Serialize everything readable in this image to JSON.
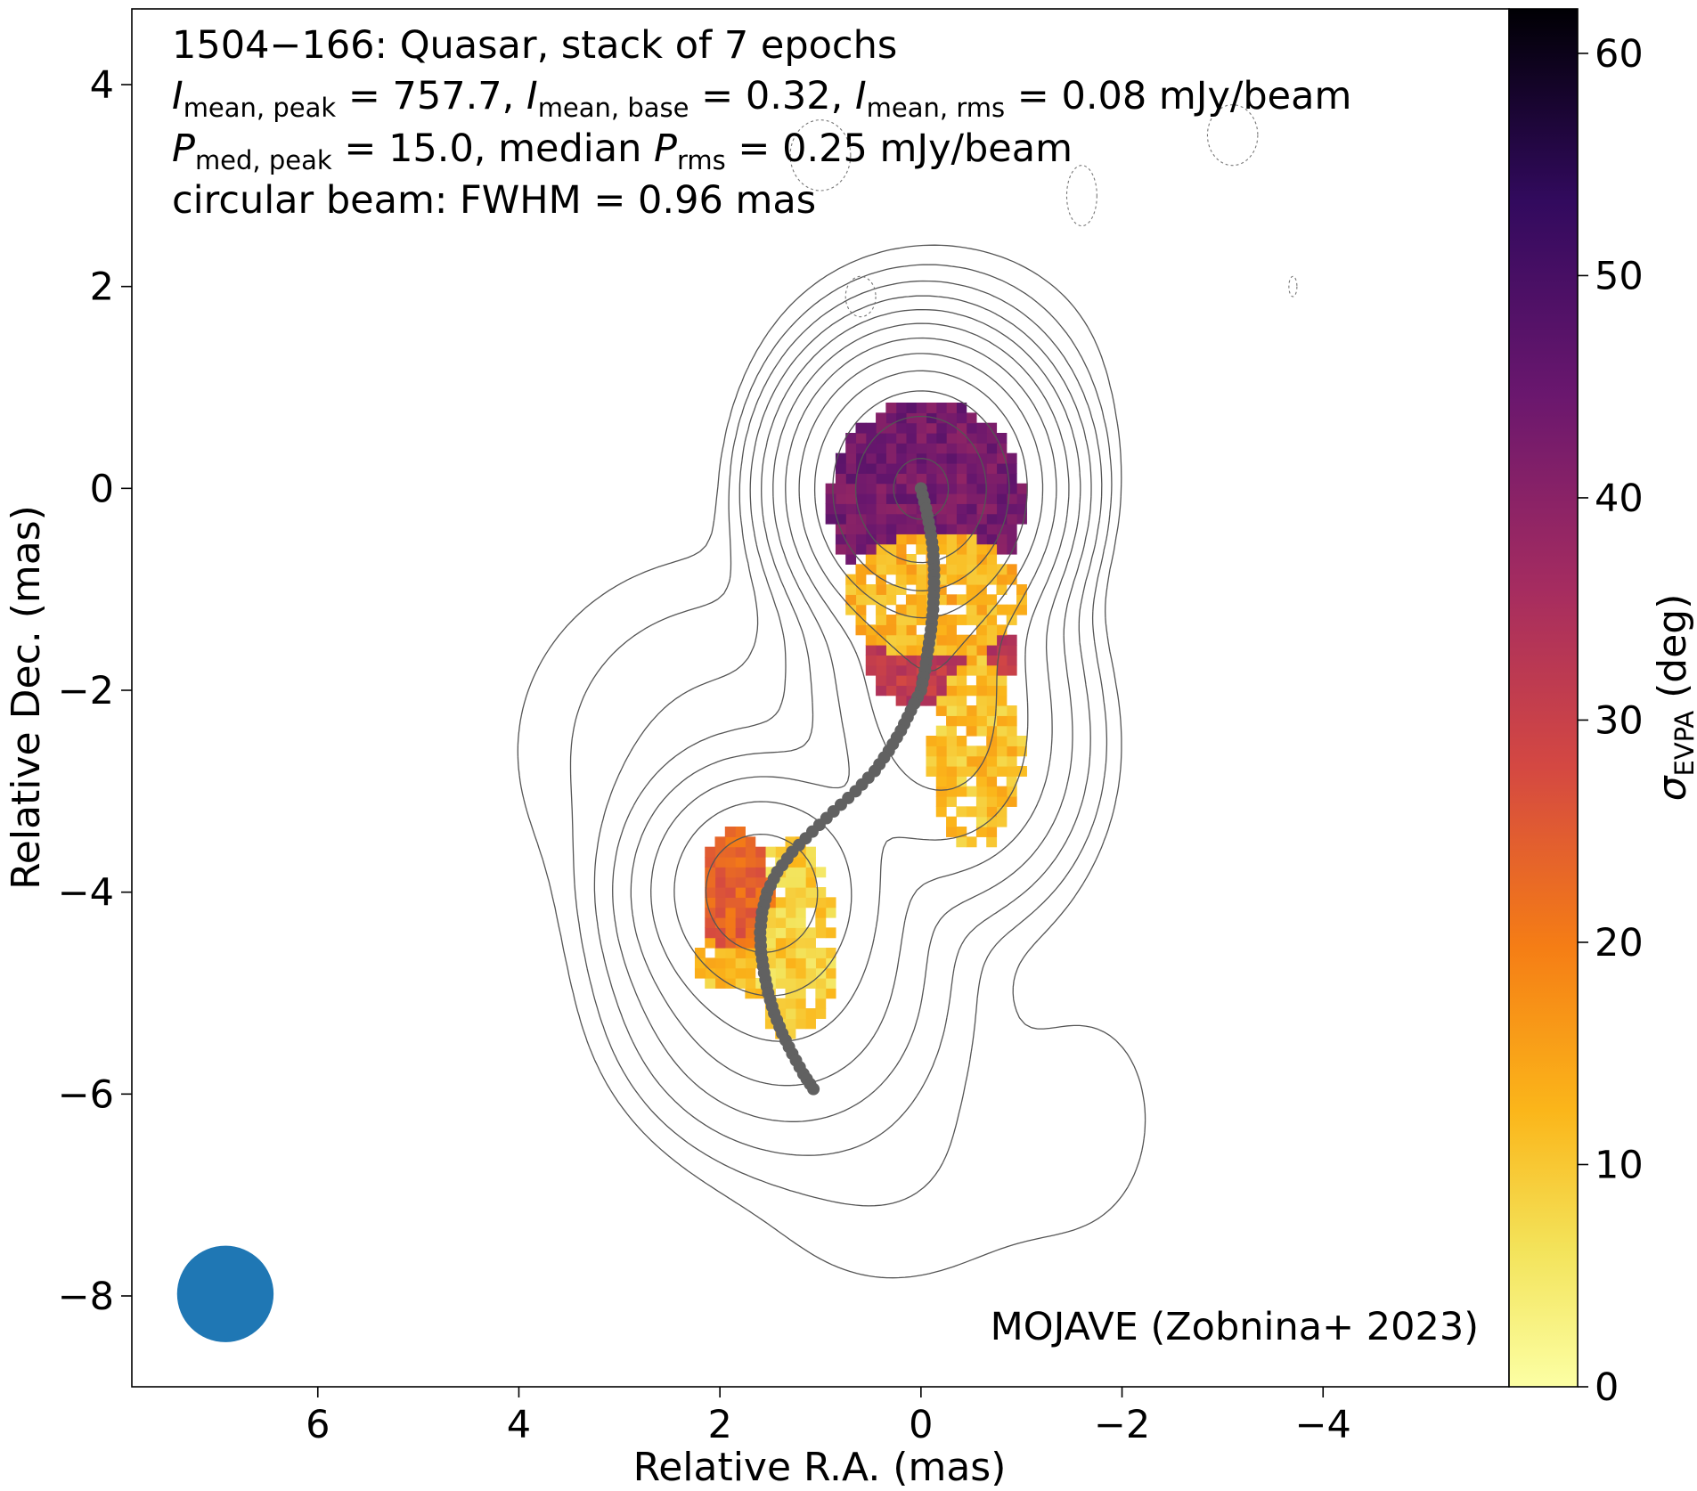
{
  "chart_data": {
    "type": "heatmap",
    "title_lines": [
      "1504−166: Quasar, stack of 7 epochs",
      "circular beam: FWHM = 0.96 mas"
    ],
    "intensity_line": {
      "I1_sym": "I",
      "I1_sub": "mean, peak",
      "I1_val": " = 757.7, ",
      "I2_sym": "I",
      "I2_sub": "mean, base",
      "I2_val": " = 0.32, ",
      "I3_sym": "I",
      "I3_sub": "mean, rms",
      "I3_val": " = 0.08 mJy/beam"
    },
    "polar_line": {
      "P1_sym": "P",
      "P1_sub": "med, peak",
      "P1_val": " = 15.0, median ",
      "P2_sym": "P",
      "P2_sub": "rms",
      "P2_val": " = 0.25 mJy/beam"
    },
    "credit": "MOJAVE (Zobnina+ 2023)",
    "xlabel": "Relative R.A. (mas)",
    "ylabel": "Relative Dec. (mas)",
    "x_ticks": [
      "6",
      "4",
      "2",
      "0",
      "−2",
      "−4"
    ],
    "x_tick_values": [
      6,
      4,
      2,
      0,
      -2,
      -4
    ],
    "y_ticks": [
      "4",
      "2",
      "0",
      "−2",
      "−4",
      "−6",
      "−8"
    ],
    "y_tick_values": [
      4,
      2,
      0,
      -2,
      -4,
      -6,
      -8
    ],
    "xlim": [
      7.85,
      -5.85
    ],
    "ylim": [
      -8.9,
      4.75
    ],
    "colorbar": {
      "label_sym": "σ",
      "label_sub": "EVPA",
      "label_unit": " (deg)",
      "ticks": [
        "0",
        "10",
        "20",
        "30",
        "40",
        "50",
        "60"
      ],
      "tick_values": [
        0,
        10,
        20,
        30,
        40,
        50,
        60
      ],
      "range": [
        0,
        62
      ],
      "colormap": "inferno_r"
    },
    "beam": {
      "center_ra": 6.92,
      "center_dec": -7.98,
      "fwhm_mas": 0.96,
      "color": "#1f77b4"
    },
    "ridge_line": {
      "color": "#616161",
      "points": [
        [
          0.0,
          0.0
        ],
        [
          -0.05,
          -0.2
        ],
        [
          -0.09,
          -0.4
        ],
        [
          -0.12,
          -0.6
        ],
        [
          -0.13,
          -0.8
        ],
        [
          -0.13,
          -1.0
        ],
        [
          -0.12,
          -1.2
        ],
        [
          -0.1,
          -1.4
        ],
        [
          -0.07,
          -1.6
        ],
        [
          -0.04,
          -1.8
        ],
        [
          0.0,
          -2.0
        ],
        [
          0.1,
          -2.2
        ],
        [
          0.2,
          -2.4
        ],
        [
          0.32,
          -2.6
        ],
        [
          0.46,
          -2.8
        ],
        [
          0.65,
          -3.0
        ],
        [
          0.87,
          -3.2
        ],
        [
          1.08,
          -3.4
        ],
        [
          1.28,
          -3.6
        ],
        [
          1.43,
          -3.8
        ],
        [
          1.53,
          -4.0
        ],
        [
          1.58,
          -4.2
        ],
        [
          1.6,
          -4.4
        ],
        [
          1.59,
          -4.6
        ],
        [
          1.56,
          -4.8
        ],
        [
          1.52,
          -5.0
        ],
        [
          1.46,
          -5.2
        ],
        [
          1.38,
          -5.4
        ],
        [
          1.28,
          -5.6
        ],
        [
          1.17,
          -5.8
        ],
        [
          1.07,
          -5.95
        ]
      ]
    },
    "epvpa_regions": [
      {
        "ra_min": -1.0,
        "ra_max": 0.9,
        "dec_min": -1.1,
        "dec_max": 0.85,
        "sigma": 43
      },
      {
        "ra_min": -0.95,
        "ra_max": 0.55,
        "dec_min": -2.2,
        "dec_max": -1.1,
        "sigma": 32
      },
      {
        "ra_min": -1.0,
        "ra_max": 0.75,
        "dec_min": -1.7,
        "dec_max": -0.45,
        "sigma": 13
      },
      {
        "ra_min": -1.0,
        "ra_max": -0.1,
        "dec_min": -3.6,
        "dec_max": -1.7,
        "sigma": 11
      },
      {
        "ra_min": 0.8,
        "ra_max": 1.8,
        "dec_min": -5.4,
        "dec_max": -3.5,
        "sigma": 9
      },
      {
        "ra_min": 1.5,
        "ra_max": 2.3,
        "dec_min": -5.0,
        "dec_max": -4.2,
        "sigma": 11
      },
      {
        "ra_min": 1.5,
        "ra_max": 2.2,
        "dec_min": -4.6,
        "dec_max": -3.4,
        "sigma": 24
      }
    ],
    "contour_levels_mJy": [
      0.32,
      0.64,
      1.28,
      2.56,
      5.12,
      10.24,
      20.48,
      40.96,
      81.92,
      163.84,
      327.68,
      655.36
    ],
    "components": [
      {
        "ra": 0.0,
        "dec": 0.0,
        "peak": 757.7,
        "sx": 0.5,
        "sy": 0.55
      },
      {
        "ra": -0.05,
        "dec": -1.5,
        "peak": 30,
        "sx": 0.55,
        "sy": 0.7
      },
      {
        "ra": -0.25,
        "dec": -2.6,
        "peak": 20,
        "sx": 0.6,
        "sy": 0.7
      },
      {
        "ra": 1.6,
        "dec": -3.95,
        "peak": 60,
        "sx": 0.55,
        "sy": 0.55
      },
      {
        "ra": 1.35,
        "dec": -4.9,
        "peak": 12,
        "sx": 0.75,
        "sy": 0.75
      },
      {
        "ra": 1.9,
        "dec": -2.6,
        "peak": 1.5,
        "sx": 1.2,
        "sy": 1.1
      },
      {
        "ra": 0.3,
        "dec": -6.8,
        "peak": 0.6,
        "sx": 1.0,
        "sy": 0.9
      },
      {
        "ra": -1.7,
        "dec": -6.2,
        "peak": 0.4,
        "sx": 0.7,
        "sy": 1.1
      },
      {
        "ra": -0.2,
        "dec": 1.2,
        "peak": 1.2,
        "sx": 0.9,
        "sy": 0.7
      }
    ]
  }
}
